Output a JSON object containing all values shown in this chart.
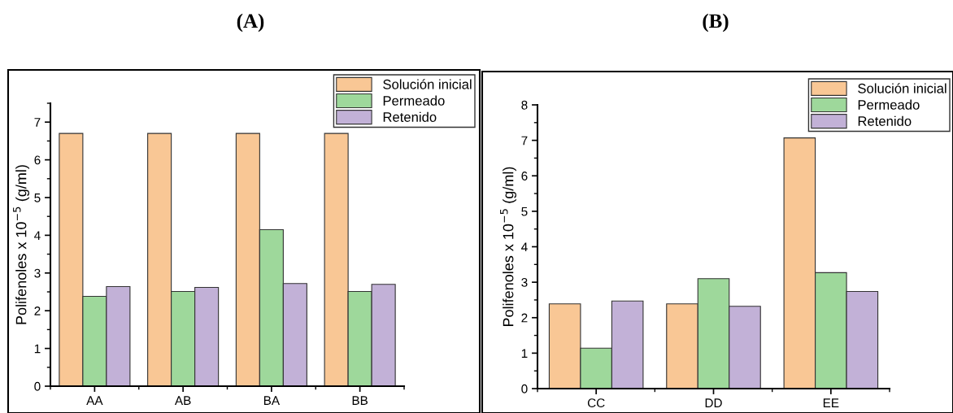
{
  "chart_data": [
    {
      "type": "bar",
      "title": "(A)",
      "ylabel": "Polifenoles x 10$^{−5}$ (g/ml)",
      "categories": [
        "AA",
        "AB",
        "BA",
        "BB"
      ],
      "series": [
        {
          "name": "Solución inicial",
          "color": "#f9c795",
          "values": [
            6.7,
            6.7,
            6.7,
            6.7
          ]
        },
        {
          "name": "Permeado",
          "color": "#9ed89b",
          "values": [
            2.38,
            2.51,
            4.15,
            2.51
          ]
        },
        {
          "name": "Retenido",
          "color": "#c2b1d7",
          "values": [
            2.64,
            2.62,
            2.72,
            2.7
          ]
        }
      ],
      "ylim": [
        0,
        7.5
      ],
      "yticks": [
        0,
        1,
        2,
        3,
        4,
        5,
        6,
        7
      ],
      "grid": false,
      "legend": "top right"
    },
    {
      "type": "bar",
      "title": "(B)",
      "ylabel": "Polifenoles x 10$^{−5}$ (g/ml)",
      "categories": [
        "CC",
        "DD",
        "EE"
      ],
      "series": [
        {
          "name": "Solución inicial",
          "color": "#f9c795",
          "values": [
            2.39,
            2.39,
            7.07
          ]
        },
        {
          "name": "Permeado",
          "color": "#9ed89b",
          "values": [
            1.14,
            3.1,
            3.27
          ]
        },
        {
          "name": "Retenido",
          "color": "#c2b1d7",
          "values": [
            2.47,
            2.32,
            2.74
          ]
        }
      ],
      "ylim": [
        0,
        8
      ],
      "yticks": [
        0,
        1,
        2,
        3,
        4,
        5,
        6,
        7,
        8
      ],
      "grid": false,
      "legend": "top right"
    }
  ]
}
